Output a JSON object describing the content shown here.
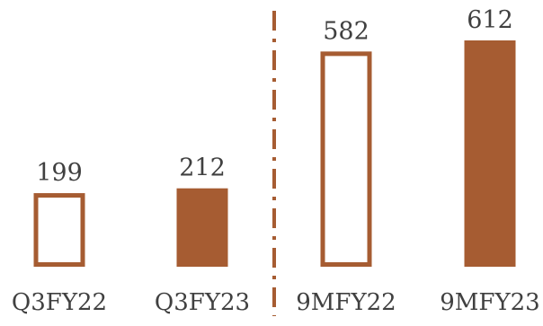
{
  "chart_data": {
    "type": "bar",
    "categories": [
      "Q3FY22",
      "Q3FY23",
      "9MFY22",
      "9MFY23"
    ],
    "values": [
      199,
      212,
      582,
      612
    ],
    "data_labels": [
      "199",
      "212",
      "582",
      "612"
    ],
    "series": [
      {
        "values": [
          199,
          212,
          582,
          612
        ]
      }
    ],
    "bar_styles": [
      "outline",
      "filled",
      "outline",
      "filled"
    ],
    "ylim": [
      0,
      612
    ],
    "grid": false,
    "legend": "none",
    "divider": "dash-dot vertical line between Q3FY23 and 9MFY22",
    "colors": {
      "bar": "#A65C32",
      "text": "#404040",
      "background": "#ffffff"
    }
  }
}
